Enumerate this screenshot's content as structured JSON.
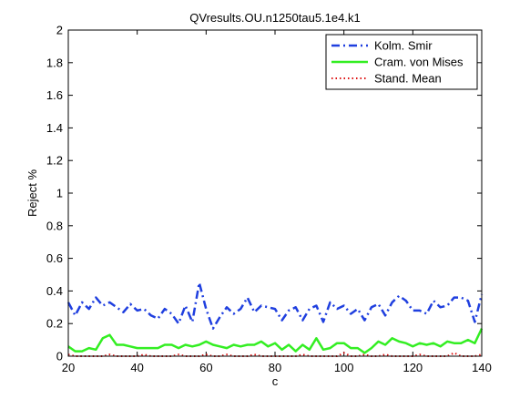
{
  "chart_data": {
    "type": "line",
    "title": "QVresults.OU.n1250tau5.1e4.k1",
    "xlabel": "c",
    "ylabel": "Reject %",
    "xlim": [
      20,
      140
    ],
    "ylim": [
      0,
      2
    ],
    "xticks": [
      20,
      40,
      60,
      80,
      100,
      120,
      140
    ],
    "yticks": [
      0,
      0.2,
      0.4,
      0.6,
      0.8,
      1,
      1.2,
      1.4,
      1.6,
      1.8,
      2
    ],
    "ytick_labels": [
      "0",
      "0.2",
      "0.4",
      "0.6",
      "0.8",
      "1",
      "1.2",
      "1.4",
      "1.6",
      "1.8",
      "2"
    ],
    "grid": false,
    "legend_position": "top-right",
    "x": [
      20,
      22,
      24,
      26,
      28,
      30,
      32,
      34,
      36,
      38,
      40,
      42,
      44,
      46,
      48,
      50,
      52,
      54,
      56,
      58,
      60,
      62,
      64,
      66,
      68,
      70,
      72,
      74,
      76,
      78,
      80,
      82,
      84,
      86,
      88,
      90,
      92,
      94,
      96,
      98,
      100,
      102,
      104,
      106,
      108,
      110,
      112,
      114,
      116,
      118,
      120,
      122,
      124,
      126,
      128,
      130,
      132,
      134,
      136,
      138,
      140
    ],
    "series": [
      {
        "name": "Kolm. Smir",
        "color": "#1f3fdf",
        "style": "dashdot",
        "values": [
          0.33,
          0.25,
          0.33,
          0.29,
          0.36,
          0.31,
          0.33,
          0.3,
          0.27,
          0.32,
          0.28,
          0.29,
          0.25,
          0.23,
          0.29,
          0.26,
          0.2,
          0.31,
          0.21,
          0.45,
          0.29,
          0.17,
          0.24,
          0.3,
          0.26,
          0.29,
          0.36,
          0.27,
          0.31,
          0.3,
          0.29,
          0.22,
          0.28,
          0.3,
          0.22,
          0.29,
          0.31,
          0.21,
          0.33,
          0.29,
          0.31,
          0.26,
          0.29,
          0.22,
          0.3,
          0.32,
          0.25,
          0.33,
          0.37,
          0.34,
          0.28,
          0.28,
          0.26,
          0.34,
          0.3,
          0.31,
          0.36,
          0.36,
          0.34,
          0.21,
          0.38
        ]
      },
      {
        "name": "Cram. von Mises",
        "color": "#33ee22",
        "style": "solid",
        "values": [
          0.06,
          0.03,
          0.03,
          0.05,
          0.04,
          0.11,
          0.13,
          0.07,
          0.07,
          0.06,
          0.05,
          0.05,
          0.05,
          0.05,
          0.07,
          0.07,
          0.05,
          0.07,
          0.06,
          0.07,
          0.09,
          0.07,
          0.06,
          0.05,
          0.07,
          0.06,
          0.07,
          0.07,
          0.09,
          0.06,
          0.08,
          0.04,
          0.07,
          0.03,
          0.07,
          0.04,
          0.11,
          0.04,
          0.05,
          0.08,
          0.08,
          0.05,
          0.05,
          0.02,
          0.05,
          0.09,
          0.07,
          0.11,
          0.09,
          0.08,
          0.06,
          0.08,
          0.07,
          0.08,
          0.06,
          0.09,
          0.08,
          0.08,
          0.1,
          0.08,
          0.17
        ]
      },
      {
        "name": "Stand. Mean",
        "color": "#dd1111",
        "style": "dotted",
        "values": [
          0.01,
          0.0,
          0.0,
          0.0,
          0.0,
          0.0,
          0.01,
          0.0,
          0.0,
          0.0,
          0.0,
          0.01,
          0.0,
          0.0,
          0.0,
          0.0,
          0.01,
          0.0,
          0.0,
          0.0,
          0.01,
          0.0,
          0.0,
          0.01,
          0.0,
          0.0,
          0.0,
          0.01,
          0.0,
          0.0,
          0.0,
          0.0,
          0.0,
          0.0,
          0.01,
          0.0,
          0.0,
          0.0,
          0.0,
          0.0,
          0.02,
          0.0,
          0.0,
          0.01,
          0.0,
          0.0,
          0.01,
          0.0,
          0.0,
          0.0,
          0.0,
          0.01,
          0.0,
          0.0,
          0.0,
          0.0,
          0.02,
          0.0,
          0.0,
          0.0,
          0.01
        ]
      }
    ]
  }
}
